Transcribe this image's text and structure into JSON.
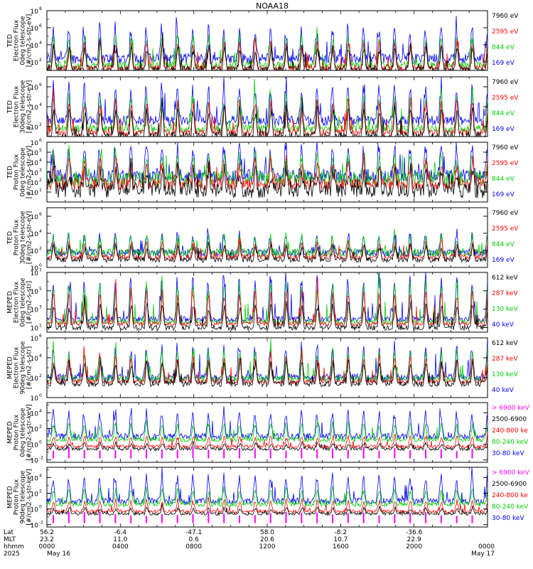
{
  "title": "NOAA18",
  "chart_data": [
    {
      "type": "line",
      "ylabel": [
        "TED",
        "Electron Flux",
        "0deg telescope",
        "[#/cm2-s-str-eV]"
      ],
      "yticks": [
        {
          "value": 2,
          "label": "10",
          "exp": "2"
        },
        {
          "value": 4,
          "label": "10",
          "exp": "4"
        },
        {
          "value": 6,
          "label": "10",
          "exp": "6"
        },
        {
          "value": 8,
          "label": "10",
          "exp": "8"
        }
      ],
      "ylim": [
        1,
        8
      ],
      "legend": [
        {
          "name": "7960 eV",
          "color": "#000000"
        },
        {
          "name": "2595 eV",
          "color": "#ff0000"
        },
        {
          "name": "844 eV",
          "color": "#00cc00"
        },
        {
          "name": "169 eV",
          "color": "#0000ff"
        }
      ]
    },
    {
      "type": "line",
      "ylabel": [
        "TED",
        "Electron Flux",
        "30deg telescope",
        "[#/cm2-s-str-eV]"
      ],
      "yticks": [
        {
          "value": 2,
          "label": "10",
          "exp": "2"
        },
        {
          "value": 4,
          "label": "10",
          "exp": "4"
        },
        {
          "value": 6,
          "label": "10",
          "exp": "6"
        }
      ],
      "ylim": [
        1,
        7
      ],
      "legend": [
        {
          "name": "7960 eV",
          "color": "#000000"
        },
        {
          "name": "2595 eV",
          "color": "#ff0000"
        },
        {
          "name": "844 eV",
          "color": "#00cc00"
        },
        {
          "name": "169 eV",
          "color": "#0000ff"
        }
      ]
    },
    {
      "type": "line",
      "ylabel": [
        "TED",
        "Proton Flux",
        "0deg telescope",
        "[#/cm2-s-str-eV]"
      ],
      "yticks": [
        {
          "value": 1,
          "label": "10",
          "exp": "1"
        },
        {
          "value": 2,
          "label": "10",
          "exp": "2"
        },
        {
          "value": 3,
          "label": "10",
          "exp": "3"
        },
        {
          "value": 4,
          "label": "10",
          "exp": "4"
        },
        {
          "value": 5,
          "label": "10",
          "exp": "5"
        },
        {
          "value": 6,
          "label": "10",
          "exp": "6"
        }
      ],
      "ylim": [
        0,
        6
      ],
      "legend": [
        {
          "name": "7960 eV",
          "color": "#000000"
        },
        {
          "name": "2595 eV",
          "color": "#ff0000"
        },
        {
          "name": "844 eV",
          "color": "#00cc00"
        },
        {
          "name": "169 eV",
          "color": "#0000ff"
        }
      ]
    },
    {
      "type": "line",
      "ylabel": [
        "TED",
        "Proton Flux",
        "30deg telescope",
        "[#/cm2-s-str-eV]"
      ],
      "yticks": [
        {
          "value": 0,
          "label": "10",
          "exp": "0"
        },
        {
          "value": 2,
          "label": "10",
          "exp": "2"
        },
        {
          "value": 4,
          "label": "10",
          "exp": "4"
        },
        {
          "value": 6,
          "label": "10",
          "exp": "6"
        }
      ],
      "ylim": [
        0,
        7
      ],
      "legend": [
        {
          "name": "7960 eV",
          "color": "#000000"
        },
        {
          "name": "2595 eV",
          "color": "#ff0000"
        },
        {
          "name": "844 eV",
          "color": "#00cc00"
        },
        {
          "name": "169 eV",
          "color": "#0000ff"
        }
      ]
    },
    {
      "type": "line",
      "ylabel": [
        "MEPED",
        "Electron Flux",
        "0deg telescope",
        "[#/cm2-s-str]"
      ],
      "yticks": [
        {
          "value": 1,
          "label": "10",
          "exp": "1"
        },
        {
          "value": 3,
          "label": "10",
          "exp": "3"
        },
        {
          "value": 5,
          "label": "10",
          "exp": "5"
        },
        {
          "value": 7,
          "label": "10",
          "exp": "7"
        }
      ],
      "ylim": [
        0.5,
        7
      ],
      "legend": [
        {
          "name": "612 keV",
          "color": "#000000"
        },
        {
          "name": "287 keV",
          "color": "#ff0000"
        },
        {
          "name": "130 keV",
          "color": "#00cc00"
        },
        {
          "name": "40 keV",
          "color": "#0000ff"
        }
      ]
    },
    {
      "type": "line",
      "ylabel": [
        "MEPED",
        "Electron Flux",
        "90deg telescope",
        "[#/cm2-s-str]"
      ],
      "yticks": [
        {
          "value": 0,
          "label": "10",
          "exp": "0"
        },
        {
          "value": 2,
          "label": "10",
          "exp": "2"
        },
        {
          "value": 4,
          "label": "10",
          "exp": "4"
        },
        {
          "value": 6,
          "label": "10",
          "exp": "6"
        }
      ],
      "ylim": [
        0,
        6
      ],
      "legend": [
        {
          "name": "612 keV",
          "color": "#000000"
        },
        {
          "name": "287 keV",
          "color": "#ff0000"
        },
        {
          "name": "130 keV",
          "color": "#00cc00"
        },
        {
          "name": "40 keV",
          "color": "#0000ff"
        }
      ]
    },
    {
      "type": "line",
      "ylabel": [
        "MEPED",
        "Proton Flux",
        "0deg telescope",
        "[#/cm2-s-str-keV]"
      ],
      "yticks": [
        {
          "value": -2,
          "label": "10",
          "exp": "-2"
        },
        {
          "value": 0,
          "label": "10",
          "exp": "0"
        },
        {
          "value": 2,
          "label": "10",
          "exp": "2"
        },
        {
          "value": 4,
          "label": "10",
          "exp": "4"
        }
      ],
      "ylim": [
        -2.3,
        5.3
      ],
      "legend": [
        {
          "name": "> 6900 keV",
          "color": "#ff00ff"
        },
        {
          "name": "2500-6900",
          "color": "#000000"
        },
        {
          "name": "240-800 ke",
          "color": "#ff0000"
        },
        {
          "name": "80-240 keV",
          "color": "#00cc00"
        },
        {
          "name": "30-80 keV",
          "color": "#0000ff"
        }
      ]
    },
    {
      "type": "line",
      "ylabel": [
        "MEPED",
        "Proton Flux",
        "90deg telescope",
        "[#/cm2-s-str-keV]"
      ],
      "yticks": [
        {
          "value": -2,
          "label": "10",
          "exp": "-2"
        },
        {
          "value": 0,
          "label": "10",
          "exp": "0"
        },
        {
          "value": 2,
          "label": "10",
          "exp": "2"
        },
        {
          "value": 4,
          "label": "10",
          "exp": "4"
        }
      ],
      "ylim": [
        -2.3,
        5.3
      ],
      "legend": [
        {
          "name": "> 6900 keV",
          "color": "#ff00ff"
        },
        {
          "name": "2500-6900",
          "color": "#000000"
        },
        {
          "name": "240-800 ke",
          "color": "#ff0000"
        },
        {
          "name": "80-240 keV",
          "color": "#00cc00"
        },
        {
          "name": "30-80 keV",
          "color": "#0000ff"
        }
      ]
    }
  ],
  "x_axis": {
    "row_labels": [
      "Lat",
      "MLT",
      "hhmm",
      "2025"
    ],
    "ticks": [
      {
        "hour": 0,
        "lat": "56.2",
        "mlt": "23.2",
        "hhmm": "0000",
        "date": "May 16"
      },
      {
        "hour": 4,
        "lat": "-6.4",
        "mlt": "11.0",
        "hhmm": "0400",
        "date": ""
      },
      {
        "hour": 8,
        "lat": "-47.1",
        "mlt": "0.6",
        "hhmm": "0800",
        "date": ""
      },
      {
        "hour": 12,
        "lat": "58.0",
        "mlt": "20.6",
        "hhmm": "1200",
        "date": ""
      },
      {
        "hour": 16,
        "lat": "-8.2",
        "mlt": "10.7",
        "hhmm": "1600",
        "date": ""
      },
      {
        "hour": 20,
        "lat": "-36.6",
        "mlt": "22.9",
        "hhmm": "2000",
        "date": ""
      },
      {
        "hour": 24,
        "lat": "",
        "mlt": "",
        "hhmm": "0000",
        "date": "May 17"
      }
    ],
    "range_hours": [
      0,
      24
    ]
  }
}
